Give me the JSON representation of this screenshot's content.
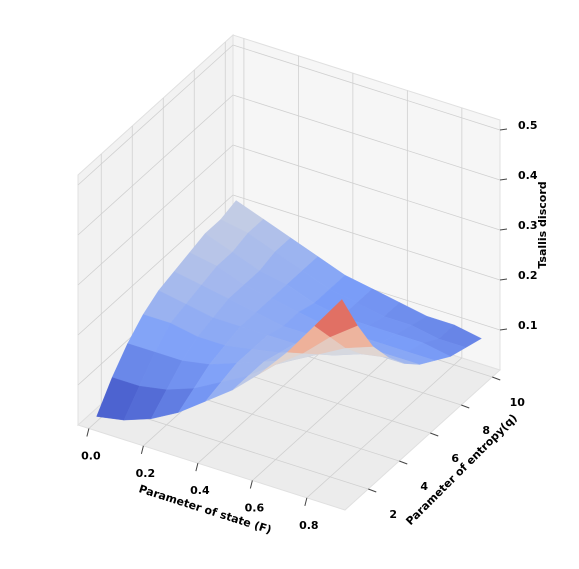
{
  "chart_data": {
    "type": "surface3d",
    "x_label": "Parameter of state (F)",
    "y_label": "Parameter of entropy(q)",
    "z_label": "Tsallis discord",
    "x": [
      0,
      0.1,
      0.2,
      0.3,
      0.4,
      0.5,
      0.6,
      0.7,
      0.8,
      0.9
    ],
    "y": [
      1,
      2,
      3,
      4,
      5,
      6,
      7,
      8,
      9,
      10
    ],
    "z": [
      [
        0.03,
        0.04,
        0.06,
        0.09,
        0.13,
        0.17,
        0.22,
        0.28,
        0.35,
        0.42
      ],
      [
        0.08,
        0.08,
        0.09,
        0.11,
        0.14,
        0.17,
        0.21,
        0.25,
        0.3,
        0.34
      ],
      [
        0.12,
        0.12,
        0.12,
        0.13,
        0.15,
        0.17,
        0.19,
        0.22,
        0.25,
        0.27
      ],
      [
        0.15,
        0.15,
        0.14,
        0.14,
        0.15,
        0.16,
        0.18,
        0.19,
        0.21,
        0.22
      ],
      [
        0.17,
        0.16,
        0.15,
        0.15,
        0.15,
        0.15,
        0.16,
        0.17,
        0.18,
        0.18
      ],
      [
        0.18,
        0.17,
        0.16,
        0.15,
        0.14,
        0.14,
        0.15,
        0.15,
        0.15,
        0.15
      ],
      [
        0.19,
        0.18,
        0.16,
        0.15,
        0.14,
        0.13,
        0.13,
        0.13,
        0.13,
        0.13
      ],
      [
        0.2,
        0.18,
        0.16,
        0.15,
        0.13,
        0.12,
        0.12,
        0.12,
        0.12,
        0.11
      ],
      [
        0.2,
        0.19,
        0.17,
        0.15,
        0.13,
        0.12,
        0.11,
        0.11,
        0.1,
        0.1
      ],
      [
        0.21,
        0.19,
        0.17,
        0.15,
        0.13,
        0.12,
        0.11,
        0.1,
        0.1,
        0.09
      ]
    ],
    "colormap": "coolwarm",
    "xlim": [
      -0.04,
      0.94
    ],
    "ylim": [
      0.5,
      10.5
    ],
    "zlim": [
      0.02,
      0.52
    ],
    "xticks": [
      {
        "value": 0,
        "label": "0.0"
      },
      0.2,
      0.4,
      0.6,
      0.8
    ],
    "yticks": [
      2,
      4,
      6,
      8,
      10
    ],
    "zticks": [
      0.1,
      0.2,
      0.3,
      0.4,
      0.5
    ],
    "grid": true
  }
}
